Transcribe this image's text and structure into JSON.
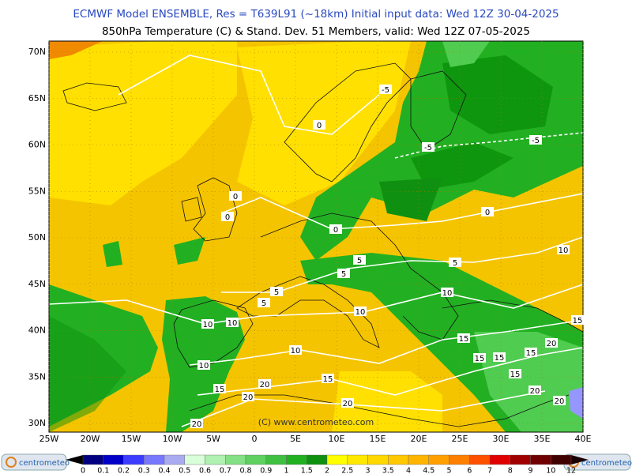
{
  "header": {
    "line1": "ECMWF Model ENSEMBLE, Res = T639L91 (~18km)  Initial input data: Wed 12Z 30-04-2025",
    "line2": "850hPa Temperature (C) & Stand. Dev.    51 Members, valid: Wed 12Z 07-05-2025"
  },
  "map": {
    "lat_labels": [
      "70N",
      "65N",
      "60N",
      "55N",
      "50N",
      "45N",
      "40N",
      "35N",
      "30N"
    ],
    "lon_labels": [
      "25W",
      "20W",
      "15W",
      "10W",
      "5W",
      "0",
      "5E",
      "10E",
      "15E",
      "20E",
      "25E",
      "30E",
      "35E",
      "40E"
    ],
    "contour_labels": [
      -5,
      0,
      -5,
      -5,
      0,
      0,
      0,
      0,
      10,
      5,
      5,
      5,
      5,
      5,
      10,
      10,
      10,
      10,
      15,
      10,
      15,
      20,
      15,
      15,
      15,
      10,
      15,
      15,
      20,
      15,
      20,
      20,
      20,
      20,
      20
    ],
    "copyright": "(C) www.centrometeo.com"
  },
  "colorbar": {
    "labels": [
      0,
      0.1,
      0.2,
      0.3,
      0.4,
      0.5,
      0.6,
      0.7,
      0.8,
      0.9,
      1,
      1.5,
      2,
      2.5,
      3,
      3.5,
      4,
      4.5,
      5,
      6,
      7,
      8,
      9,
      10,
      12
    ]
  },
  "logos": {
    "left": "centrometeo",
    "right": "centrometeo"
  }
}
